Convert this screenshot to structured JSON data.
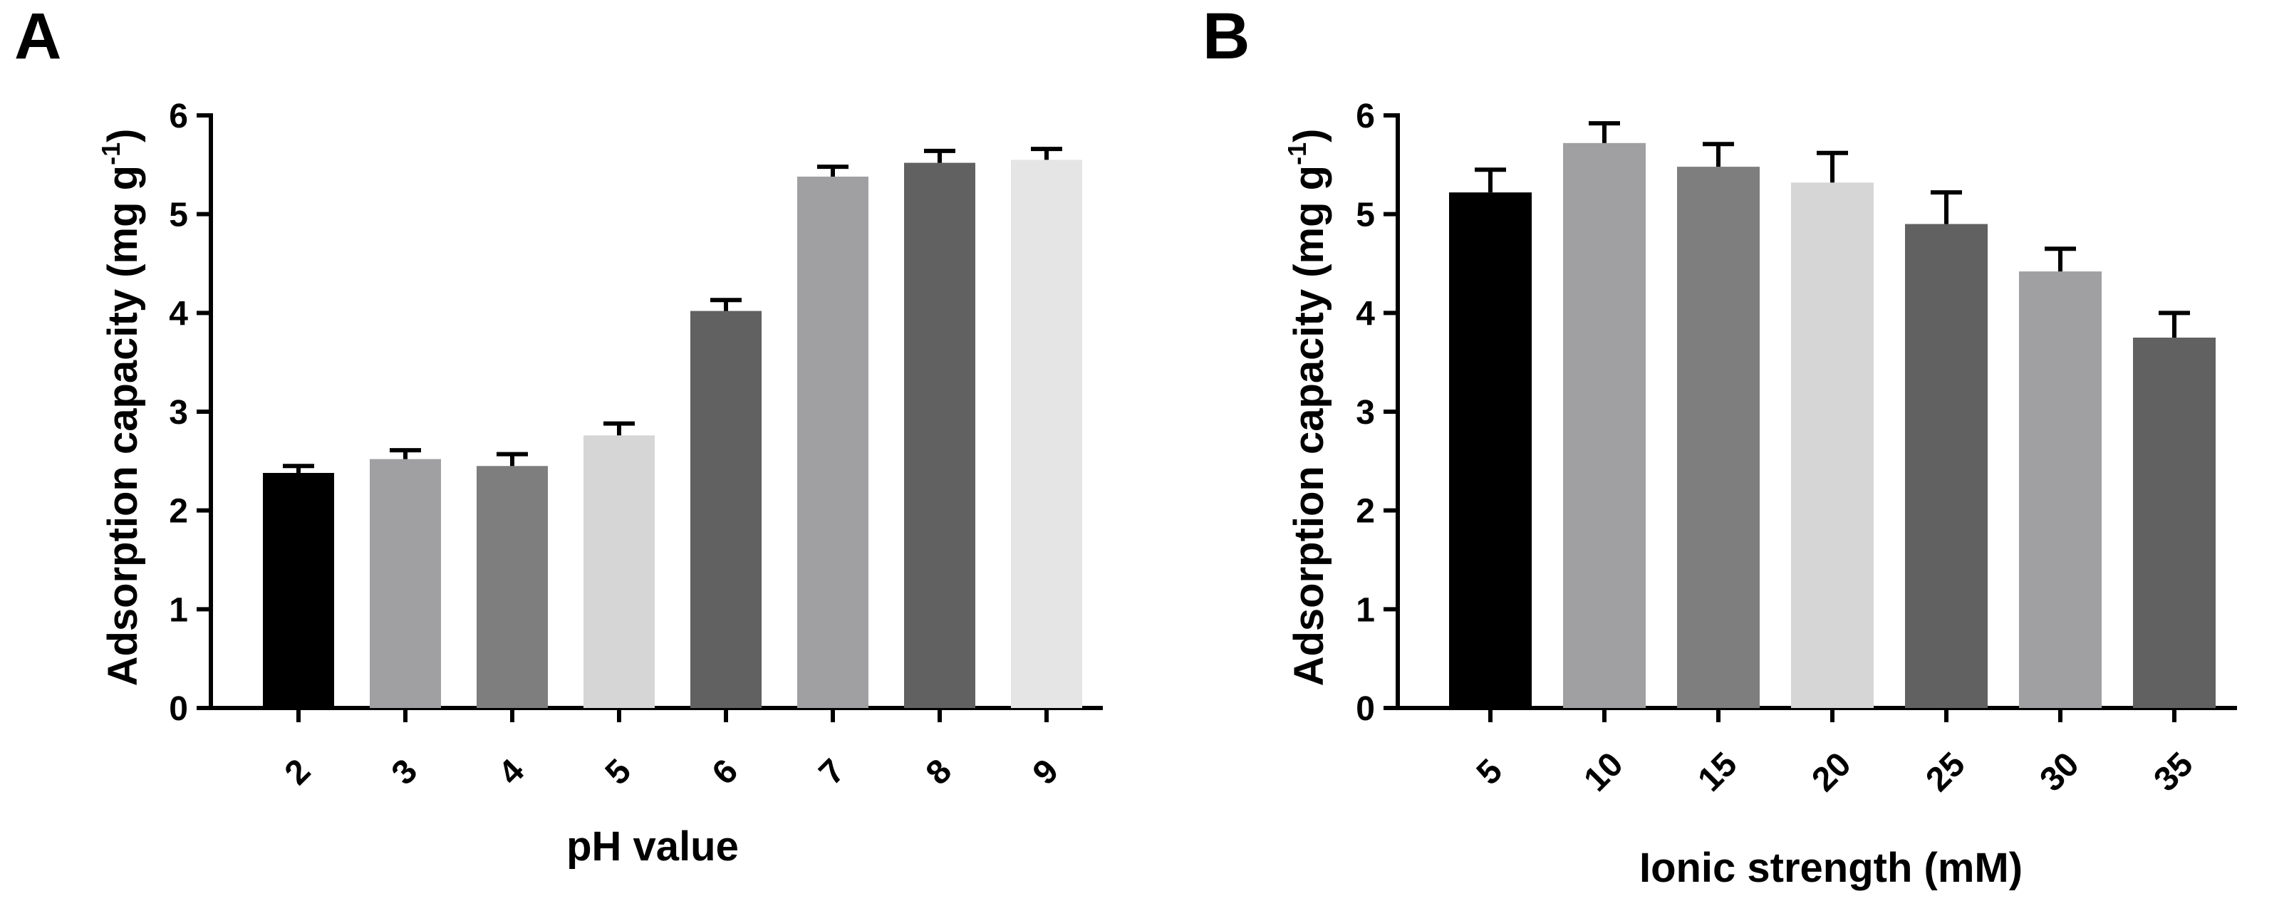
{
  "chart_data": [
    {
      "type": "bar",
      "panel_label": "A",
      "title": "",
      "xlabel": "pH value",
      "ylabel": "Adsorption capacity (mg g",
      "ylabel_sup": "-1",
      "ylabel_end": ")",
      "ylim": [
        0,
        6
      ],
      "yticks": [
        "0",
        "1",
        "2",
        "3",
        "4",
        "5",
        "6"
      ],
      "categories": [
        "2",
        "3",
        "4",
        "5",
        "6",
        "7",
        "8",
        "9"
      ],
      "values": [
        2.38,
        2.52,
        2.45,
        2.76,
        4.02,
        5.38,
        5.52,
        5.55
      ],
      "errors": [
        0.07,
        0.09,
        0.12,
        0.12,
        0.11,
        0.1,
        0.12,
        0.11
      ],
      "colors": [
        "#000000",
        "#a0a0a3",
        "#7e7e7e",
        "#d6d6d6",
        "#616161",
        "#a0a0a3",
        "#616161",
        "#e5e5e5"
      ]
    },
    {
      "type": "bar",
      "panel_label": "B",
      "title": "",
      "xlabel": "Ionic strength (mM)",
      "ylabel": "Adsorption capacity (mg g",
      "ylabel_sup": "-1",
      "ylabel_end": ")",
      "ylim": [
        0,
        6
      ],
      "yticks": [
        "0",
        "1",
        "2",
        "3",
        "4",
        "5",
        "6"
      ],
      "categories": [
        "5",
        "10",
        "15",
        "20",
        "25",
        "30",
        "35"
      ],
      "values": [
        5.22,
        5.72,
        5.48,
        5.32,
        4.9,
        4.42,
        3.75
      ],
      "errors": [
        0.23,
        0.2,
        0.23,
        0.3,
        0.32,
        0.23,
        0.25
      ],
      "colors": [
        "#000000",
        "#a0a0a3",
        "#7e7e7e",
        "#d6d6d6",
        "#616161",
        "#a0a0a3",
        "#616161"
      ]
    }
  ]
}
